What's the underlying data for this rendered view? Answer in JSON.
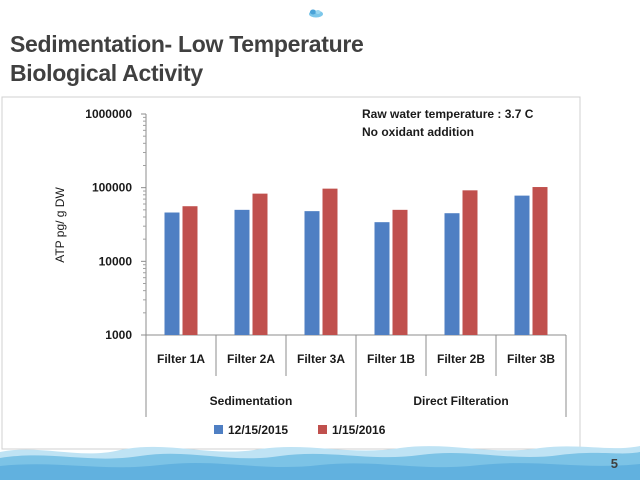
{
  "slide": {
    "title_line1": "Sedimentation- Low Temperature",
    "title_line2": "Biological Activity",
    "page_number": "5"
  },
  "annotations": {
    "line1": "Raw water temperature : 3.7  C",
    "line2": "No oxidant addition"
  },
  "colors": {
    "series1": "#4f7fc3",
    "series2": "#c0504d",
    "title": "#404040",
    "wave": "#5aaedb"
  },
  "chart_data": {
    "type": "bar",
    "yscale": "log",
    "ylim": [
      1000,
      1000000
    ],
    "yticks": [
      "1000000",
      "100000",
      "10000",
      "1000"
    ],
    "ylabel": "ATP pg/ g DW",
    "xlabel": "",
    "title": "",
    "categories": [
      "Filter 1A",
      "Filter 2A",
      "Filter 3A",
      "Filter 1B",
      "Filter 2B",
      "Filter 3B"
    ],
    "groups": [
      {
        "label": "Sedimentation",
        "span": 3
      },
      {
        "label": "Direct Filteration",
        "span": 3
      }
    ],
    "series": [
      {
        "name": "12/15/2015",
        "values": [
          46000,
          50000,
          48000,
          34000,
          45000,
          78000
        ]
      },
      {
        "name": "1/15/2016",
        "values": [
          56000,
          83000,
          97000,
          50000,
          92000,
          102000
        ]
      }
    ],
    "legend_position": "bottom",
    "grid": false
  }
}
